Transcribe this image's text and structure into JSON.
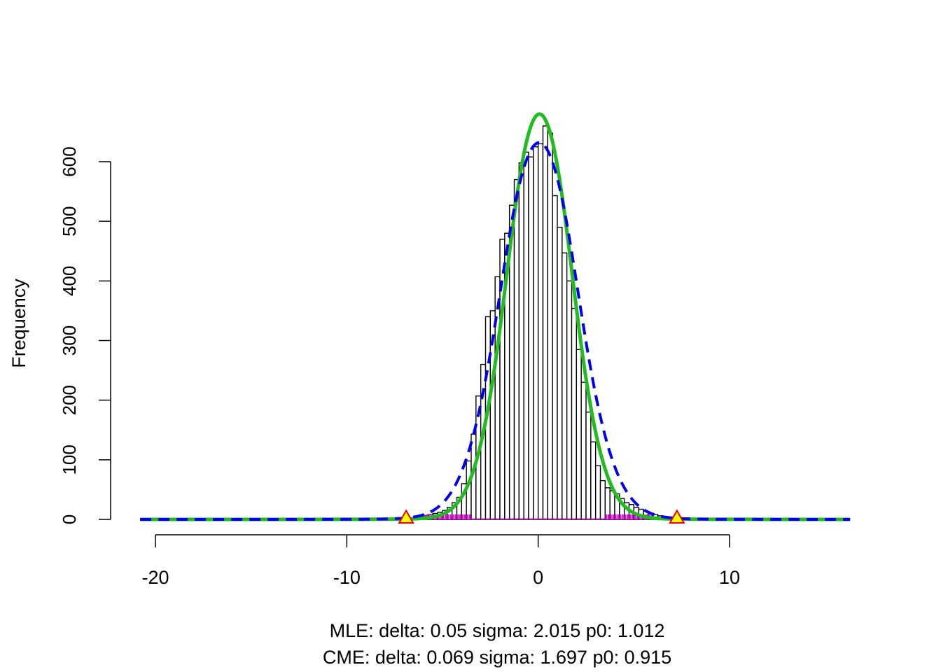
{
  "chart_data": {
    "type": "bar",
    "title": "",
    "xlabel_lines": [
      "MLE: delta: 0.05 sigma: 2.015 p0: 1.012",
      "CME: delta: 0.069 sigma: 1.697 p0: 0.915"
    ],
    "ylabel": "Frequency",
    "xlim": [
      -21,
      16.5
    ],
    "ylim": [
      0,
      680
    ],
    "x_ticks": [
      -20,
      -10,
      0,
      10
    ],
    "y_ticks": [
      0,
      100,
      200,
      300,
      400,
      500,
      600
    ],
    "bin_width": 0.25,
    "bins": [
      {
        "x0": -7.25,
        "count": 2
      },
      {
        "x0": -7.0,
        "count": 3
      },
      {
        "x0": -6.75,
        "count": 3
      },
      {
        "x0": -6.5,
        "count": 4
      },
      {
        "x0": -6.25,
        "count": 5
      },
      {
        "x0": -6.0,
        "count": 6
      },
      {
        "x0": -5.75,
        "count": 8
      },
      {
        "x0": -5.5,
        "count": 10
      },
      {
        "x0": -5.25,
        "count": 12
      },
      {
        "x0": -5.0,
        "count": 15
      },
      {
        "x0": -4.75,
        "count": 20
      },
      {
        "x0": -4.5,
        "count": 28
      },
      {
        "x0": -4.25,
        "count": 37
      },
      {
        "x0": -4.0,
        "count": 60
      },
      {
        "x0": -3.75,
        "count": 98
      },
      {
        "x0": -3.5,
        "count": 143
      },
      {
        "x0": -3.25,
        "count": 207
      },
      {
        "x0": -3.0,
        "count": 260
      },
      {
        "x0": -2.75,
        "count": 340
      },
      {
        "x0": -2.5,
        "count": 350
      },
      {
        "x0": -2.25,
        "count": 407
      },
      {
        "x0": -2.0,
        "count": 470
      },
      {
        "x0": -1.75,
        "count": 480
      },
      {
        "x0": -1.5,
        "count": 527
      },
      {
        "x0": -1.25,
        "count": 570
      },
      {
        "x0": -1.0,
        "count": 598
      },
      {
        "x0": -0.75,
        "count": 616
      },
      {
        "x0": -0.5,
        "count": 608
      },
      {
        "x0": -0.25,
        "count": 625
      },
      {
        "x0": 0.0,
        "count": 630
      },
      {
        "x0": 0.25,
        "count": 660
      },
      {
        "x0": 0.5,
        "count": 648
      },
      {
        "x0": 0.75,
        "count": 543
      },
      {
        "x0": 1.0,
        "count": 490
      },
      {
        "x0": 1.25,
        "count": 447
      },
      {
        "x0": 1.5,
        "count": 400
      },
      {
        "x0": 1.75,
        "count": 354
      },
      {
        "x0": 2.0,
        "count": 285
      },
      {
        "x0": 2.25,
        "count": 230
      },
      {
        "x0": 2.5,
        "count": 180
      },
      {
        "x0": 2.75,
        "count": 130
      },
      {
        "x0": 3.0,
        "count": 90
      },
      {
        "x0": 3.25,
        "count": 65
      },
      {
        "x0": 3.5,
        "count": 53
      },
      {
        "x0": 3.75,
        "count": 48
      },
      {
        "x0": 4.0,
        "count": 43
      },
      {
        "x0": 4.25,
        "count": 35
      },
      {
        "x0": 4.5,
        "count": 28
      },
      {
        "x0": 4.75,
        "count": 25
      },
      {
        "x0": 5.0,
        "count": 20
      },
      {
        "x0": 5.25,
        "count": 17
      },
      {
        "x0": 5.5,
        "count": 14
      },
      {
        "x0": 5.75,
        "count": 10
      },
      {
        "x0": 6.0,
        "count": 8
      },
      {
        "x0": 6.25,
        "count": 6
      },
      {
        "x0": 6.5,
        "count": 5
      },
      {
        "x0": 6.75,
        "count": 4
      },
      {
        "x0": 7.0,
        "count": 3
      },
      {
        "x0": 7.25,
        "count": 3
      },
      {
        "x0": 7.5,
        "count": 2
      },
      {
        "x0": 7.75,
        "count": 2
      },
      {
        "x0": 8.0,
        "count": 2
      },
      {
        "x0": 8.25,
        "count": 1
      },
      {
        "x0": 8.5,
        "count": 1
      },
      {
        "x0": 8.75,
        "count": 2
      },
      {
        "x0": 9.0,
        "count": 1
      },
      {
        "x0": -10.0,
        "count": 2
      },
      {
        "x0": -13.25,
        "count": 1
      }
    ],
    "curves": [
      {
        "style": "solid",
        "color": "#22bb22",
        "sigma": 1.697,
        "delta": 0.069,
        "peak": 680
      },
      {
        "style": "dashed",
        "color": "#0000ee",
        "sigma": 2.015,
        "delta": 0.05,
        "peak": 632
      }
    ],
    "x_range_curves": [
      -20.8,
      16.3
    ],
    "cutoff_points": [
      {
        "x": -6.9,
        "y": 3
      },
      {
        "x": 7.25,
        "y": 3
      }
    ],
    "outlier_spike_color": "#ee00ee",
    "triangle_fill": "#ffff00",
    "triangle_stroke": "#ee0000"
  }
}
